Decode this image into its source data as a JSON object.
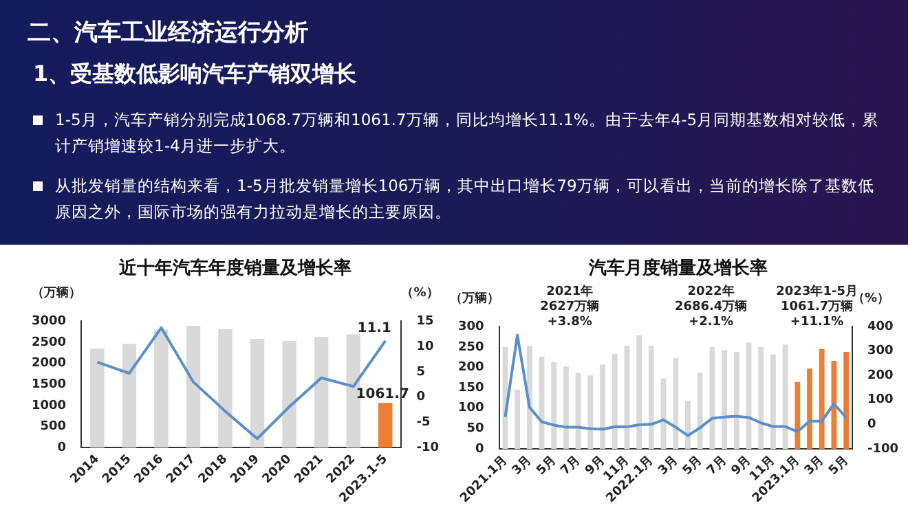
{
  "chart_data": [
    {
      "type": "other",
      "title": "二、汽车工业经济运行分析",
      "subtitle": "1、受基数低影响汽车产销双增长",
      "annotations": [
        "1-5月，汽车产销分别完成1068.7万辆和1061.7万辆，同比均增长11.1%。由于去年4-5月同期基数相对较低，累计产销增速较1-4月进一步扩大。",
        "从批发销量的结构来看，1-5月批发销量增长106万辆，其中出口增长79万辆，可以看出，当前的增长除了基数低原因之外，国际市场的强有力拉动是增长的主要原因。"
      ]
    },
    {
      "type": "bar",
      "title": "近十年汽车年度销量及增长率",
      "ylabel": "（万辆）",
      "y2label": "（%）",
      "categories": [
        "2014",
        "2015",
        "2016",
        "2017",
        "2018",
        "2019",
        "2020",
        "2021",
        "2022",
        "2023.1-5"
      ],
      "series": [
        {
          "type": "bar",
          "colors": [
            "#d9d9d9",
            "#d9d9d9",
            "#d9d9d9",
            "#d9d9d9",
            "#d9d9d9",
            "#d9d9d9",
            "#d9d9d9",
            "#d9d9d9",
            "#d9d9d9",
            "#ed7d31"
          ],
          "values": [
            2350,
            2460,
            2800,
            2890,
            2810,
            2580,
            2530,
            2630,
            2690,
            1061.7
          ],
          "value_labels": [
            null,
            null,
            null,
            null,
            null,
            null,
            null,
            null,
            null,
            "1061.7"
          ]
        },
        {
          "type": "line",
          "axis": "y2",
          "color": "#5b8fc9",
          "values": [
            6.9,
            4.7,
            13.7,
            3.0,
            -2.8,
            -8.2,
            -1.9,
            3.8,
            2.1,
            11.1
          ],
          "value_labels": [
            null,
            null,
            null,
            null,
            null,
            null,
            null,
            null,
            null,
            "11.1"
          ]
        }
      ],
      "ylim": [
        0,
        3000
      ],
      "yticks": [
        0,
        500,
        1000,
        1500,
        2000,
        2500,
        3000
      ],
      "y2lim": [
        -10,
        15
      ],
      "y2ticks": [
        -10,
        -5,
        0,
        5,
        10,
        15
      ],
      "grid": false,
      "legend": false,
      "marker": "none"
    },
    {
      "type": "bar",
      "title": "汽车月度销量及增长率",
      "ylabel": "（万辆）",
      "y2label": "（%）",
      "categories": [
        "2021.1月",
        null,
        "3月",
        null,
        "5月",
        null,
        "7月",
        null,
        "9月",
        null,
        "11月",
        null,
        "2022.1月",
        null,
        "3月",
        null,
        "5月",
        null,
        "7月",
        null,
        "9月",
        null,
        "11月",
        null,
        "2023.1月",
        null,
        "3月",
        null,
        "5月"
      ],
      "series": [
        {
          "type": "bar",
          "colors": [
            "#d9d9d9",
            "#d9d9d9",
            "#d9d9d9",
            "#d9d9d9",
            "#d9d9d9",
            "#d9d9d9",
            "#d9d9d9",
            "#d9d9d9",
            "#d9d9d9",
            "#d9d9d9",
            "#d9d9d9",
            "#d9d9d9",
            "#d9d9d9",
            "#d9d9d9",
            "#d9d9d9",
            "#d9d9d9",
            "#d9d9d9",
            "#d9d9d9",
            "#d9d9d9",
            "#d9d9d9",
            "#d9d9d9",
            "#d9d9d9",
            "#d9d9d9",
            "#d9d9d9",
            "#ed7d31",
            "#ed7d31",
            "#ed7d31",
            "#ed7d31",
            "#ed7d31"
          ],
          "values": [
            250,
            145,
            253,
            226,
            213,
            202,
            186,
            180,
            207,
            233,
            253,
            279,
            253,
            173,
            223,
            118,
            186,
            250,
            242,
            238,
            261,
            250,
            232,
            256,
            164,
            197,
            245,
            216,
            238
          ]
        },
        {
          "type": "line",
          "axis": "y2",
          "color": "#5b8fc9",
          "values": [
            30,
            365,
            70,
            10,
            -3,
            -12,
            -12,
            -18,
            -20,
            -10,
            -10,
            -2,
            0,
            18,
            -12,
            -46,
            -14,
            25,
            30,
            33,
            28,
            6,
            -9,
            -9,
            -30,
            13,
            13,
            84,
            27
          ]
        }
      ],
      "annotations": [
        "2021年\n2627万辆\n+3.8%",
        "2022年\n2686.4万辆\n+2.1%",
        "2023年1-5月\n1061.7万辆\n+11.1%"
      ],
      "ylim": [
        0,
        300
      ],
      "yticks": [
        0,
        50,
        100,
        150,
        200,
        250,
        300
      ],
      "y2lim": [
        -100,
        400
      ],
      "y2ticks": [
        -100,
        0,
        100,
        200,
        300,
        400
      ],
      "grid": false,
      "legend": false,
      "marker": "none"
    }
  ]
}
